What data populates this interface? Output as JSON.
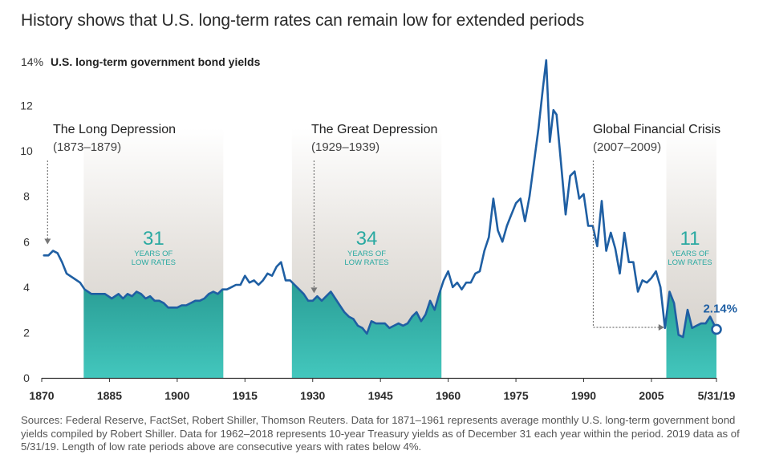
{
  "title": "History shows that U.S. long-term rates can remain low for extended periods",
  "sources": "Sources: Federal Reserve, FactSet, Robert Shiller, Thomson Reuters. Data for 1871–1961 represents average monthly U.S. long-term government bond yields compiled by Robert Shiller. Data for 1962–2018 represents 10-year Treasury yields as of December 31 each year within the period. 2019 data as of 5/31/19. Length of low rate periods above are consecutive years with rates below 4%.",
  "colors": {
    "line": "#1f5fa3",
    "teal": "#2fb4ac",
    "gray": "#d9d6d2",
    "text": "#2b2b2b"
  },
  "chart_data": {
    "type": "line",
    "ylabel": "U.S. long-term government bond yields",
    "y_unit_label": "14%",
    "ylim": [
      0,
      14
    ],
    "y_ticks": [
      0,
      2,
      4,
      6,
      8,
      10,
      12
    ],
    "xlim": [
      1870,
      2019.4
    ],
    "x_ticks": [
      {
        "x": 1870,
        "label": "1870"
      },
      {
        "x": 1885,
        "label": "1885"
      },
      {
        "x": 1900,
        "label": "1900"
      },
      {
        "x": 1915,
        "label": "1915"
      },
      {
        "x": 1930,
        "label": "1930"
      },
      {
        "x": 1945,
        "label": "1945"
      },
      {
        "x": 1960,
        "label": "1960"
      },
      {
        "x": 1975,
        "label": "1975"
      },
      {
        "x": 1990,
        "label": "1990"
      },
      {
        "x": 2005,
        "label": "2005"
      },
      {
        "x": 2019.4,
        "label": "5/31/19"
      }
    ],
    "series": [
      {
        "name": "",
        "points": [
          [
            1870.5,
            5.4
          ],
          [
            1871.5,
            5.4
          ],
          [
            1872.5,
            5.6
          ],
          [
            1873.5,
            5.5
          ],
          [
            1874.5,
            5.1
          ],
          [
            1875.5,
            4.6
          ],
          [
            1877,
            4.4
          ],
          [
            1878.5,
            4.2
          ],
          [
            1879.5,
            3.9
          ],
          [
            1881,
            3.7
          ],
          [
            1883,
            3.7
          ],
          [
            1884,
            3.7
          ],
          [
            1885.5,
            3.5
          ],
          [
            1887,
            3.7
          ],
          [
            1888,
            3.5
          ],
          [
            1889,
            3.7
          ],
          [
            1890,
            3.6
          ],
          [
            1891,
            3.8
          ],
          [
            1892,
            3.7
          ],
          [
            1893,
            3.5
          ],
          [
            1894,
            3.6
          ],
          [
            1895,
            3.4
          ],
          [
            1896,
            3.4
          ],
          [
            1897,
            3.3
          ],
          [
            1898,
            3.1
          ],
          [
            1899,
            3.1
          ],
          [
            1900,
            3.1
          ],
          [
            1901,
            3.2
          ],
          [
            1902,
            3.2
          ],
          [
            1903,
            3.3
          ],
          [
            1904,
            3.4
          ],
          [
            1905,
            3.4
          ],
          [
            1906,
            3.5
          ],
          [
            1907,
            3.7
          ],
          [
            1908,
            3.8
          ],
          [
            1909,
            3.7
          ],
          [
            1910,
            3.9
          ],
          [
            1911,
            3.9
          ],
          [
            1912,
            4.0
          ],
          [
            1913,
            4.1
          ],
          [
            1914,
            4.1
          ],
          [
            1915,
            4.5
          ],
          [
            1916,
            4.2
          ],
          [
            1917,
            4.3
          ],
          [
            1918,
            4.1
          ],
          [
            1919,
            4.3
          ],
          [
            1920,
            4.6
          ],
          [
            1921,
            4.5
          ],
          [
            1922,
            4.9
          ],
          [
            1923,
            5.1
          ],
          [
            1924,
            4.3
          ],
          [
            1925,
            4.3
          ],
          [
            1926,
            4.1
          ],
          [
            1927,
            3.9
          ],
          [
            1928,
            3.7
          ],
          [
            1929,
            3.4
          ],
          [
            1930,
            3.4
          ],
          [
            1931,
            3.6
          ],
          [
            1932,
            3.4
          ],
          [
            1933,
            3.6
          ],
          [
            1934,
            3.8
          ],
          [
            1935,
            3.5
          ],
          [
            1936,
            3.2
          ],
          [
            1937,
            2.9
          ],
          [
            1938,
            2.7
          ],
          [
            1939,
            2.6
          ],
          [
            1940,
            2.3
          ],
          [
            1941,
            2.2
          ],
          [
            1942,
            1.95
          ],
          [
            1943,
            2.5
          ],
          [
            1944,
            2.4
          ],
          [
            1945,
            2.4
          ],
          [
            1946,
            2.4
          ],
          [
            1947,
            2.2
          ],
          [
            1948,
            2.3
          ],
          [
            1949,
            2.4
          ],
          [
            1950,
            2.3
          ],
          [
            1951,
            2.4
          ],
          [
            1952,
            2.7
          ],
          [
            1953,
            2.9
          ],
          [
            1954,
            2.5
          ],
          [
            1955,
            2.8
          ],
          [
            1956,
            3.4
          ],
          [
            1957,
            3.0
          ],
          [
            1958,
            3.7
          ],
          [
            1959,
            4.3
          ],
          [
            1960,
            4.7
          ],
          [
            1961,
            4.0
          ],
          [
            1962,
            4.2
          ],
          [
            1963,
            3.9
          ],
          [
            1964,
            4.2
          ],
          [
            1965,
            4.2
          ],
          [
            1966,
            4.6
          ],
          [
            1967,
            4.7
          ],
          [
            1968,
            5.6
          ],
          [
            1969,
            6.2
          ],
          [
            1970,
            7.9
          ],
          [
            1971,
            6.5
          ],
          [
            1972,
            6.0
          ],
          [
            1973,
            6.7
          ],
          [
            1974,
            7.2
          ],
          [
            1975,
            7.7
          ],
          [
            1976,
            7.9
          ],
          [
            1977,
            6.9
          ],
          [
            1978,
            8.0
          ],
          [
            1979,
            9.5
          ],
          [
            1980,
            11.0
          ],
          [
            1981,
            12.8
          ],
          [
            1981.7,
            14.0
          ],
          [
            1982.5,
            10.4
          ],
          [
            1983.3,
            11.8
          ],
          [
            1984,
            11.6
          ],
          [
            1985,
            9.4
          ],
          [
            1986,
            7.2
          ],
          [
            1987,
            8.9
          ],
          [
            1988,
            9.1
          ],
          [
            1989,
            7.9
          ],
          [
            1990,
            8.1
          ],
          [
            1991,
            6.7
          ],
          [
            1992,
            6.7
          ],
          [
            1993,
            5.8
          ],
          [
            1994,
            7.8
          ],
          [
            1995,
            5.6
          ],
          [
            1996,
            6.4
          ],
          [
            1997,
            5.7
          ],
          [
            1998,
            4.6
          ],
          [
            1999,
            6.4
          ],
          [
            2000,
            5.1
          ],
          [
            2001,
            5.1
          ],
          [
            2002,
            3.8
          ],
          [
            2003,
            4.3
          ],
          [
            2004,
            4.2
          ],
          [
            2005,
            4.4
          ],
          [
            2006,
            4.7
          ],
          [
            2007,
            4.0
          ],
          [
            2008,
            2.2
          ],
          [
            2009,
            3.8
          ],
          [
            2010,
            3.3
          ],
          [
            2011,
            1.9
          ],
          [
            2012,
            1.8
          ],
          [
            2013,
            3.0
          ],
          [
            2014,
            2.2
          ],
          [
            2015,
            2.3
          ],
          [
            2016,
            2.4
          ],
          [
            2017,
            2.4
          ],
          [
            2018,
            2.7
          ],
          [
            2019.4,
            2.14
          ]
        ]
      }
    ],
    "shaded_periods": [
      {
        "name": "The Long Depression",
        "years": "(1873–1879)",
        "low_start": 1879.3,
        "low_end": 1910.2,
        "count": "31",
        "count_label_1": "YEARS OF",
        "count_label_2": "LOW RATES"
      },
      {
        "name": "The Great Depression",
        "years": "(1929–1939)",
        "low_start": 1925.4,
        "low_end": 1958.5,
        "count": "34",
        "count_label_1": "YEARS OF",
        "count_label_2": "LOW RATES"
      },
      {
        "name": "Global Financial Crisis",
        "years": "(2007–2009)",
        "low_start": 2008.3,
        "low_end": 2019.4,
        "count": "11",
        "count_label_1": "YEARS OF",
        "count_label_2": "LOW RATES"
      }
    ],
    "end_label": "2.14%"
  }
}
